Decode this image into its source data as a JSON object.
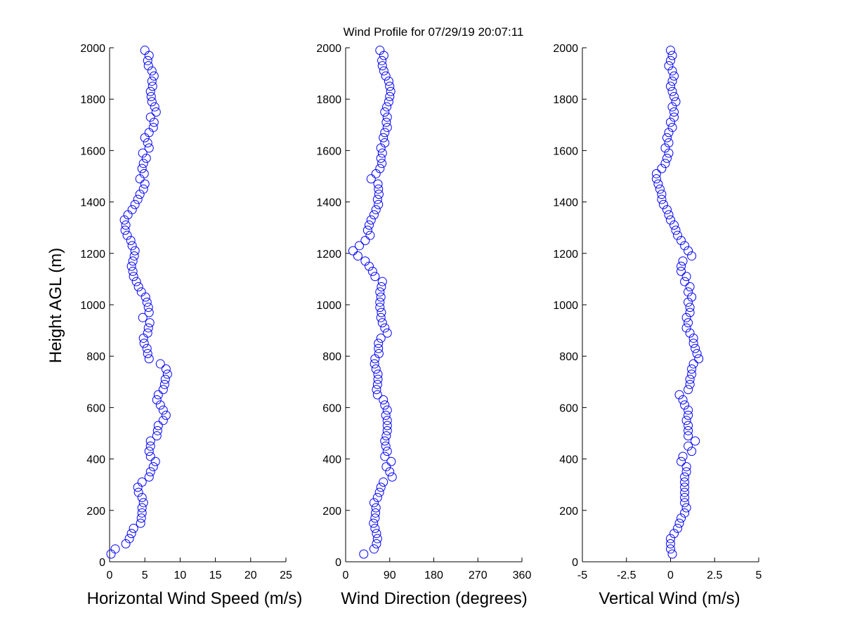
{
  "title": "Wind Profile for  07/29/19 20:07:11",
  "marker_color": "#0000ff",
  "chart_data": [
    {
      "type": "scatter",
      "marker": "circle",
      "xlabel": "Horizontal Wind Speed (m/s)",
      "ylabel": "Height AGL (m)",
      "xlim": [
        0,
        25
      ],
      "ylim": [
        0,
        2000
      ],
      "xticks": [
        "0",
        "5",
        "10",
        "15",
        "20",
        "25"
      ],
      "xtick_values": [
        0,
        5,
        10,
        15,
        20,
        25
      ],
      "yticks": [
        "0",
        "200",
        "400",
        "600",
        "800",
        "1000",
        "1200",
        "1400",
        "1600",
        "1800",
        "2000"
      ],
      "ytick_values": [
        0,
        200,
        400,
        600,
        800,
        1000,
        1200,
        1400,
        1600,
        1800,
        2000
      ],
      "y": [
        30,
        50,
        70,
        90,
        110,
        130,
        150,
        170,
        190,
        210,
        230,
        250,
        270,
        290,
        310,
        330,
        350,
        370,
        390,
        410,
        430,
        450,
        470,
        490,
        510,
        530,
        550,
        570,
        590,
        610,
        630,
        650,
        670,
        690,
        710,
        730,
        750,
        770,
        790,
        810,
        830,
        850,
        870,
        890,
        910,
        930,
        950,
        970,
        990,
        1010,
        1030,
        1050,
        1070,
        1090,
        1110,
        1130,
        1150,
        1170,
        1190,
        1210,
        1230,
        1250,
        1270,
        1290,
        1310,
        1330,
        1350,
        1370,
        1390,
        1410,
        1430,
        1450,
        1470,
        1490,
        1510,
        1530,
        1550,
        1570,
        1590,
        1610,
        1630,
        1650,
        1670,
        1690,
        1710,
        1730,
        1750,
        1770,
        1790,
        1810,
        1830,
        1850,
        1870,
        1890,
        1910,
        1930,
        1950,
        1970,
        1990
      ],
      "x": [
        0.2,
        0.8,
        2.3,
        2.8,
        3.1,
        3.4,
        4.4,
        4.5,
        4.6,
        4.6,
        4.8,
        4.6,
        4.1,
        4.0,
        4.6,
        5.6,
        5.8,
        6.2,
        6.5,
        5.8,
        5.6,
        5.8,
        5.8,
        6.7,
        6.8,
        6.9,
        7.6,
        8.0,
        7.6,
        7.2,
        6.7,
        6.9,
        7.6,
        7.8,
        7.9,
        8.2,
        8.0,
        7.2,
        5.6,
        5.4,
        5.3,
        4.9,
        4.8,
        5.4,
        5.5,
        5.7,
        4.7,
        5.6,
        5.5,
        5.3,
        5.1,
        4.5,
        4.1,
        3.8,
        3.4,
        3.3,
        3.1,
        3.3,
        3.5,
        3.6,
        3.2,
        3.0,
        2.5,
        2.2,
        2.3,
        2.1,
        2.6,
        3.2,
        3.6,
        4.0,
        4.3,
        4.8,
        5.0,
        4.3,
        4.9,
        4.6,
        4.8,
        5.2,
        4.7,
        5.6,
        5.4,
        5.0,
        5.6,
        6.2,
        6.3,
        5.8,
        6.6,
        6.4,
        6.0,
        5.9,
        5.8,
        6.1,
        6.0,
        6.3,
        6.0,
        5.5,
        5.4,
        5.6,
        5.0
      ]
    },
    {
      "type": "scatter",
      "marker": "circle",
      "xlabel": "Wind Direction (degrees)",
      "ylabel": "",
      "xlim": [
        0,
        360
      ],
      "ylim": [
        0,
        2000
      ],
      "xticks": [
        "0",
        "90",
        "180",
        "270",
        "360"
      ],
      "xtick_values": [
        0,
        90,
        180,
        270,
        360
      ],
      "yticks": [
        "0",
        "200",
        "400",
        "600",
        "800",
        "1000",
        "1200",
        "1400",
        "1600",
        "1800",
        "2000"
      ],
      "ytick_values": [
        0,
        200,
        400,
        600,
        800,
        1000,
        1200,
        1400,
        1600,
        1800,
        2000
      ],
      "y": [
        30,
        50,
        70,
        90,
        110,
        130,
        150,
        170,
        190,
        210,
        230,
        250,
        270,
        290,
        310,
        330,
        350,
        370,
        390,
        410,
        430,
        450,
        470,
        490,
        510,
        530,
        550,
        570,
        590,
        610,
        630,
        650,
        670,
        690,
        710,
        730,
        750,
        770,
        790,
        810,
        830,
        850,
        870,
        890,
        910,
        930,
        950,
        970,
        990,
        1010,
        1030,
        1050,
        1070,
        1090,
        1110,
        1130,
        1150,
        1170,
        1190,
        1210,
        1230,
        1250,
        1270,
        1290,
        1310,
        1330,
        1350,
        1370,
        1390,
        1410,
        1430,
        1450,
        1470,
        1490,
        1510,
        1530,
        1550,
        1570,
        1590,
        1610,
        1630,
        1650,
        1670,
        1690,
        1710,
        1730,
        1750,
        1770,
        1790,
        1810,
        1830,
        1850,
        1870,
        1890,
        1910,
        1930,
        1950,
        1970,
        1990
      ],
      "x": [
        37,
        58,
        63,
        65,
        63,
        60,
        57,
        60,
        61,
        62,
        58,
        65,
        69,
        72,
        77,
        95,
        90,
        83,
        93,
        80,
        85,
        82,
        80,
        83,
        85,
        85,
        85,
        82,
        85,
        80,
        77,
        65,
        63,
        65,
        66,
        66,
        62,
        59,
        60,
        68,
        67,
        67,
        72,
        85,
        80,
        75,
        72,
        73,
        70,
        70,
        72,
        70,
        73,
        75,
        60,
        55,
        48,
        40,
        25,
        15,
        28,
        40,
        50,
        45,
        48,
        52,
        58,
        62,
        67,
        65,
        68,
        67,
        66,
        52,
        62,
        70,
        74,
        72,
        75,
        72,
        80,
        77,
        80,
        85,
        83,
        85,
        80,
        84,
        88,
        90,
        92,
        90,
        88,
        82,
        78,
        75,
        74,
        78,
        70
      ]
    },
    {
      "type": "scatter",
      "marker": "circle",
      "xlabel": "Vertical Wind (m/s)",
      "ylabel": "",
      "xlim": [
        -5,
        5
      ],
      "ylim": [
        0,
        2000
      ],
      "xticks": [
        "-5",
        "-2.5",
        "0",
        "2.5",
        "5"
      ],
      "xtick_values": [
        -5,
        -2.5,
        0,
        2.5,
        5
      ],
      "yticks": [
        "0",
        "200",
        "400",
        "600",
        "800",
        "1000",
        "1200",
        "1400",
        "1600",
        "1800",
        "2000"
      ],
      "ytick_values": [
        0,
        200,
        400,
        600,
        800,
        1000,
        1200,
        1400,
        1600,
        1800,
        2000
      ],
      "y": [
        30,
        50,
        70,
        90,
        110,
        130,
        150,
        170,
        190,
        210,
        230,
        250,
        270,
        290,
        310,
        330,
        350,
        370,
        390,
        410,
        430,
        450,
        470,
        490,
        510,
        530,
        550,
        570,
        590,
        610,
        630,
        650,
        670,
        690,
        710,
        730,
        750,
        770,
        790,
        810,
        830,
        850,
        870,
        890,
        910,
        930,
        950,
        970,
        990,
        1010,
        1030,
        1050,
        1070,
        1090,
        1110,
        1130,
        1150,
        1170,
        1190,
        1210,
        1230,
        1250,
        1270,
        1290,
        1310,
        1330,
        1350,
        1370,
        1390,
        1410,
        1430,
        1450,
        1470,
        1490,
        1510,
        1530,
        1550,
        1570,
        1590,
        1610,
        1630,
        1650,
        1670,
        1690,
        1710,
        1730,
        1750,
        1770,
        1790,
        1810,
        1830,
        1850,
        1870,
        1890,
        1910,
        1930,
        1950,
        1970,
        1990
      ],
      "x": [
        0.1,
        0.0,
        0.0,
        0.0,
        0.2,
        0.4,
        0.5,
        0.6,
        0.8,
        0.9,
        0.8,
        0.8,
        0.8,
        0.8,
        0.8,
        0.8,
        0.9,
        0.9,
        0.6,
        0.7,
        1.2,
        1.0,
        1.4,
        1.0,
        1.0,
        1.0,
        0.9,
        1.0,
        1.0,
        0.8,
        0.7,
        0.5,
        1.0,
        1.1,
        1.1,
        1.2,
        1.2,
        1.3,
        1.6,
        1.5,
        1.4,
        1.3,
        1.3,
        1.1,
        0.9,
        1.0,
        0.9,
        1.1,
        1.1,
        1.0,
        1.2,
        1.0,
        1.1,
        0.8,
        0.9,
        0.6,
        0.6,
        0.7,
        1.2,
        1.0,
        0.8,
        0.6,
        0.4,
        0.3,
        0.2,
        0.0,
        -0.1,
        -0.2,
        -0.4,
        -0.5,
        -0.5,
        -0.6,
        -0.7,
        -0.8,
        -0.8,
        -0.5,
        -0.3,
        -0.2,
        -0.1,
        -0.3,
        -0.1,
        -0.2,
        -0.1,
        0.1,
        0.0,
        0.2,
        0.2,
        0.1,
        0.3,
        0.2,
        0.1,
        0.0,
        0.1,
        0.2,
        0.1,
        -0.1,
        0.0,
        0.1,
        0.0
      ]
    }
  ]
}
